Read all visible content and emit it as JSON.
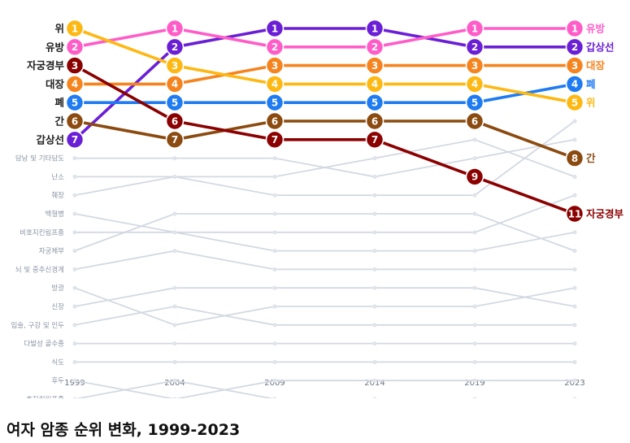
{
  "caption": "여자 암종 순위 변화, 1999-2023",
  "chart_data": {
    "type": "bump",
    "x": [
      "1999",
      "2004",
      "2009",
      "2014",
      "2019",
      "2023"
    ],
    "rank_range": [
      1,
      18
    ],
    "grid": true,
    "highlighted": [
      {
        "name": "위",
        "color": "#FDB813",
        "ranks": [
          1,
          3,
          4,
          4,
          4,
          5
        ]
      },
      {
        "name": "유방",
        "color": "#FF5CC8",
        "ranks": [
          2,
          1,
          2,
          2,
          1,
          1
        ]
      },
      {
        "name": "자궁경부",
        "color": "#8B0000",
        "ranks": [
          3,
          6,
          7,
          7,
          9,
          11
        ]
      },
      {
        "name": "대장",
        "color": "#F5841F",
        "ranks": [
          4,
          4,
          3,
          3,
          3,
          3
        ]
      },
      {
        "name": "폐",
        "color": "#1E7BF2",
        "ranks": [
          5,
          5,
          5,
          5,
          5,
          4
        ]
      },
      {
        "name": "간",
        "color": "#8B4A0F",
        "ranks": [
          6,
          7,
          6,
          6,
          6,
          8
        ]
      },
      {
        "name": "갑상선",
        "color": "#6A1FD6",
        "ranks": [
          7,
          2,
          1,
          1,
          2,
          2
        ]
      }
    ],
    "others": [
      {
        "name": "담낭 및 기타담도",
        "ranks": [
          8,
          8,
          8,
          9,
          8,
          7
        ]
      },
      {
        "name": "난소",
        "ranks": [
          9,
          9,
          9,
          8,
          7,
          9
        ]
      },
      {
        "name": "췌장",
        "ranks": [
          10,
          9,
          10,
          10,
          10,
          6
        ]
      },
      {
        "name": "백혈병",
        "ranks": [
          11,
          12,
          13,
          13,
          13,
          12
        ]
      },
      {
        "name": "비호지킨림프종",
        "ranks": [
          12,
          12,
          12,
          12,
          12,
          10
        ]
      },
      {
        "name": "자궁체부",
        "ranks": [
          13,
          11,
          11,
          11,
          11,
          13
        ]
      },
      {
        "name": "뇌 및 중추신경계",
        "ranks": [
          14,
          13,
          14,
          14,
          14,
          14
        ]
      },
      {
        "name": "방광",
        "ranks": [
          15,
          17,
          16,
          16,
          16,
          15
        ]
      },
      {
        "name": "신장",
        "ranks": [
          16,
          15,
          15,
          15,
          15,
          16
        ]
      },
      {
        "name": "입술, 구강 및 인두",
        "ranks": [
          17,
          16,
          17,
          17,
          17,
          17
        ]
      },
      {
        "name": "다발성 골수종",
        "ranks": [
          18,
          18,
          18,
          18,
          18,
          18
        ]
      },
      {
        "name": "식도",
        "ranks": [
          19,
          19,
          19,
          19,
          19,
          19
        ]
      },
      {
        "name": "후두",
        "ranks": [
          20,
          21,
          20,
          20,
          20,
          20
        ]
      },
      {
        "name": "호지킨림프종",
        "ranks": [
          21,
          20,
          21,
          21,
          21,
          21
        ]
      }
    ]
  }
}
